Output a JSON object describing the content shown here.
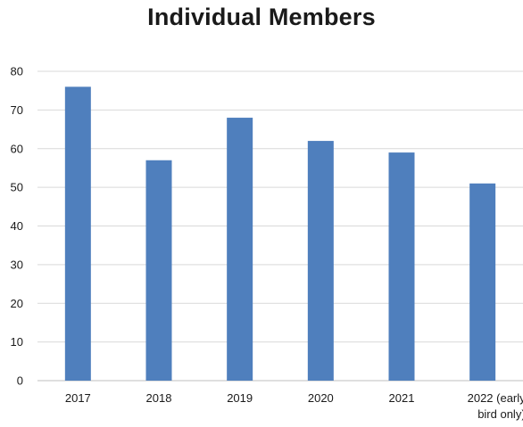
{
  "chart_data": {
    "type": "bar",
    "title": "Individual Members",
    "categories": [
      "2017",
      "2018",
      "2019",
      "2020",
      "2021",
      "2022 (early bird only)"
    ],
    "category_lines": [
      [
        "2017"
      ],
      [
        "2018"
      ],
      [
        "2019"
      ],
      [
        "2020"
      ],
      [
        "2021"
      ],
      [
        "2022 (early",
        "bird only)"
      ]
    ],
    "values": [
      76,
      57,
      68,
      62,
      59,
      51
    ],
    "ylim": [
      0,
      80
    ],
    "yticks": [
      0,
      10,
      20,
      30,
      40,
      50,
      60,
      70,
      80
    ],
    "xlabel": "",
    "ylabel": "",
    "grid": true,
    "legend": "none",
    "colors": {
      "bar": "#4f7fbd",
      "grid": "#d9d9d9",
      "text": "#1a1a1a"
    }
  }
}
